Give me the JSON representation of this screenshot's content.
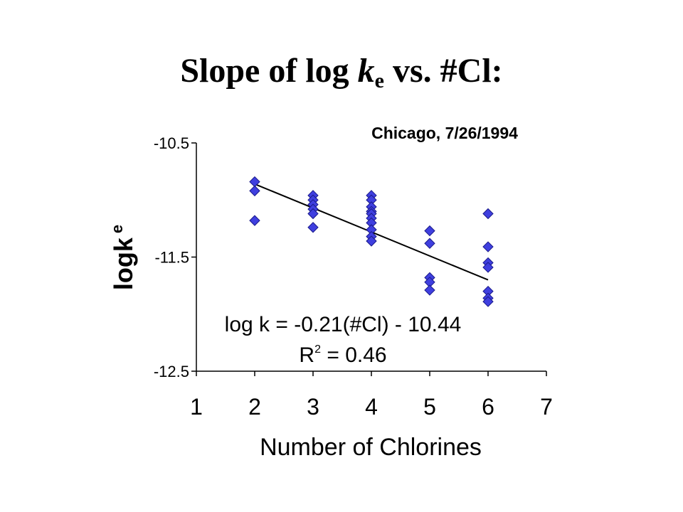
{
  "title": {
    "pre": "Slope of log ",
    "var": "k",
    "sub": "e",
    "post": " vs. #Cl:"
  },
  "chart_data": {
    "type": "scatter",
    "subtitle": "Chicago, 7/26/1994",
    "xlabel": "Number of Chlorines",
    "ylabel_main": "logk",
    "ylabel_sub": "e",
    "xlim": [
      1,
      7
    ],
    "ylim": [
      -12.5,
      -10.5
    ],
    "xticks": [
      "1",
      "2",
      "3",
      "4",
      "5",
      "6",
      "7"
    ],
    "yticks": [
      {
        "value": -10.5,
        "label": "-10.5"
      },
      {
        "value": -11.5,
        "label": "-11.5"
      },
      {
        "value": -12.5,
        "label": "-12.5"
      }
    ],
    "points": [
      {
        "x": 2,
        "y": -10.84
      },
      {
        "x": 2,
        "y": -10.92
      },
      {
        "x": 2,
        "y": -11.18
      },
      {
        "x": 3,
        "y": -10.96
      },
      {
        "x": 3,
        "y": -11.0
      },
      {
        "x": 3,
        "y": -11.04
      },
      {
        "x": 3,
        "y": -11.08
      },
      {
        "x": 3,
        "y": -11.12
      },
      {
        "x": 3,
        "y": -11.24
      },
      {
        "x": 4,
        "y": -10.96
      },
      {
        "x": 4,
        "y": -11.0
      },
      {
        "x": 4,
        "y": -11.06
      },
      {
        "x": 4,
        "y": -11.1
      },
      {
        "x": 4,
        "y": -11.12
      },
      {
        "x": 4,
        "y": -11.16
      },
      {
        "x": 4,
        "y": -11.2
      },
      {
        "x": 4,
        "y": -11.26
      },
      {
        "x": 4,
        "y": -11.32
      },
      {
        "x": 4,
        "y": -11.36
      },
      {
        "x": 5,
        "y": -11.27
      },
      {
        "x": 5,
        "y": -11.38
      },
      {
        "x": 5,
        "y": -11.68
      },
      {
        "x": 5,
        "y": -11.72
      },
      {
        "x": 5,
        "y": -11.79
      },
      {
        "x": 6,
        "y": -11.12
      },
      {
        "x": 6,
        "y": -11.41
      },
      {
        "x": 6,
        "y": -11.55
      },
      {
        "x": 6,
        "y": -11.59
      },
      {
        "x": 6,
        "y": -11.8
      },
      {
        "x": 6,
        "y": -11.86
      },
      {
        "x": 6,
        "y": -11.89
      }
    ],
    "trendline": {
      "slope": -0.21,
      "intercept": -10.44,
      "x_start": 2,
      "x_end": 6
    },
    "equation_text": "log k = -0.21(#Cl) - 10.44",
    "r2_pre": "R",
    "r2_sup": "2",
    "r2_post": " = 0.46",
    "marker_color": "#3f3fdf",
    "marker_edge": "#1a1a8a"
  }
}
